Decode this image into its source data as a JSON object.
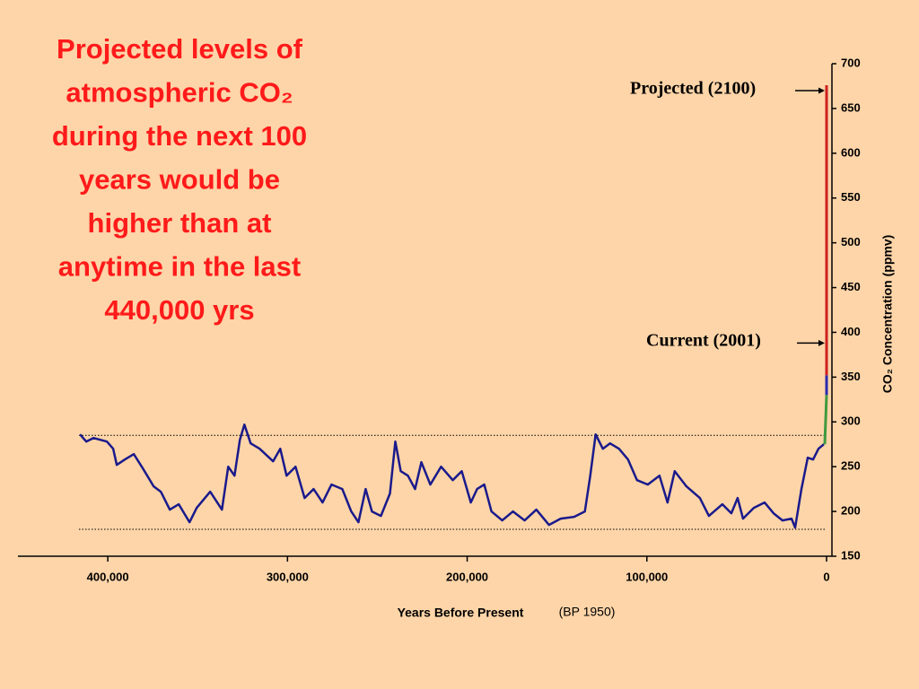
{
  "chart_data": {
    "type": "line",
    "title_lines": [
      "Projected levels of",
      "atmospheric CO₂",
      "during the next 100",
      "years would be",
      "higher than at",
      "anytime in the last",
      "440,000 yrs"
    ],
    "x_label": "Years Before Present",
    "x_label_note": "(BP 1950)",
    "y_label": "CO₂ Concentration (ppmv)",
    "annotations": [
      {
        "text": "Projected (2100)",
        "value": 670
      },
      {
        "text": "Current (2001)",
        "value": 388
      }
    ],
    "reference_lines": [
      285,
      180
    ],
    "xlim": [
      450000,
      0
    ],
    "xticks": [
      {
        "value": 400000,
        "label": "400,000"
      },
      {
        "value": 300000,
        "label": "300,000"
      },
      {
        "value": 200000,
        "label": "200,000"
      },
      {
        "value": 100000,
        "label": "100,000"
      },
      0
    ],
    "ylim": [
      150,
      700
    ],
    "yticks": [
      150,
      200,
      250,
      300,
      350,
      400,
      450,
      500,
      550,
      600,
      650,
      700
    ],
    "series": [
      {
        "color": "#1a1a8c",
        "x": [
          415500,
          412000,
          408000,
          400500,
          397000,
          395000,
          390500,
          385500,
          380500,
          374500,
          370500,
          365500,
          360500,
          354500,
          350500,
          343000,
          336500,
          333000,
          329500,
          326500,
          324000,
          320500,
          315500,
          308000,
          304000,
          300500,
          295500,
          290500,
          285500,
          280500,
          275500,
          269500,
          264500,
          260500,
          256500,
          253000,
          248000,
          243000,
          240000,
          237000,
          233000,
          229000,
          225500,
          220500,
          214500,
          208000,
          203000,
          198000,
          194500,
          190500,
          186500,
          180500,
          174500,
          168000,
          161500,
          154500,
          148000,
          140500,
          134500,
          131500,
          128500,
          124500,
          120500,
          115500,
          110500,
          105500,
          99500,
          93000,
          88500,
          84500,
          78000,
          70500,
          65500,
          58000,
          53000,
          49500,
          46500,
          40500,
          34500,
          29500,
          24500,
          19500,
          17500,
          14000,
          10500,
          7500,
          4500,
          1500
        ],
        "values": [
          286,
          278,
          282,
          278,
          270,
          252,
          258,
          264,
          248,
          228,
          222,
          202,
          208,
          188,
          204,
          222,
          202,
          250,
          240,
          280,
          297,
          276,
          270,
          256,
          270,
          240,
          250,
          215,
          225,
          210,
          230,
          225,
          200,
          188,
          225,
          200,
          195,
          220,
          278,
          245,
          240,
          225,
          255,
          230,
          250,
          235,
          245,
          210,
          225,
          230,
          200,
          190,
          200,
          190,
          202,
          185,
          192,
          194,
          200,
          240,
          286,
          270,
          276,
          270,
          258,
          235,
          230,
          240,
          210,
          245,
          228,
          215,
          195,
          208,
          198,
          215,
          192,
          204,
          210,
          198,
          190,
          192,
          182,
          225,
          260,
          258,
          270,
          275
        ]
      },
      {
        "color": "#3f9a3f",
        "x": [
          1000,
          0
        ],
        "values": [
          275,
          330
        ]
      },
      {
        "color": "#2a2ab0",
        "x": [
          0,
          0
        ],
        "values": [
          330,
          352
        ]
      },
      {
        "color": "#cc1f1f",
        "x": [
          0,
          0
        ],
        "values": [
          352,
          676
        ]
      }
    ]
  }
}
